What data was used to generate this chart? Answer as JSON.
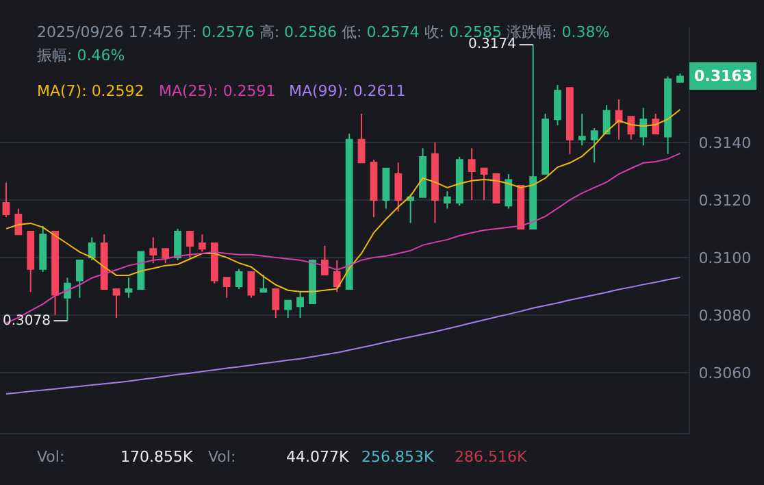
{
  "chart_data": {
    "type": "candlestick",
    "categories": [
      null,
      null,
      null,
      null,
      null,
      null,
      null,
      null,
      null,
      null,
      null,
      null,
      null,
      null,
      null,
      null,
      null,
      null,
      null,
      null,
      null,
      null,
      null,
      null,
      null,
      null,
      null,
      null,
      null,
      null,
      null,
      null,
      null,
      null,
      null,
      null,
      null,
      null,
      null,
      null,
      null,
      null,
      null,
      null,
      null,
      null,
      null,
      null,
      null,
      null,
      null,
      null,
      null,
      null,
      null,
      null
    ],
    "ohlc": [
      [
        0.3119,
        0.3126,
        0.3114,
        0.3115
      ],
      [
        0.3115,
        0.3117,
        0.3108,
        0.3108
      ],
      [
        0.3109,
        0.3109,
        0.3088,
        0.3096
      ],
      [
        0.3096,
        0.3111,
        0.3095,
        0.3108
      ],
      [
        0.3109,
        0.3109,
        0.308,
        0.3087
      ],
      [
        0.3086,
        0.3093,
        0.3078,
        0.3091
      ],
      [
        0.3092,
        0.3099,
        0.3086,
        0.3099
      ],
      [
        0.31,
        0.3107,
        0.3099,
        0.3105
      ],
      [
        0.3105,
        0.3108,
        0.3089,
        0.3089
      ],
      [
        0.3089,
        0.3089,
        0.3079,
        0.3087
      ],
      [
        0.3088,
        0.3093,
        0.3086,
        0.3089
      ],
      [
        0.3089,
        0.3102,
        0.3089,
        0.3102
      ],
      [
        0.3103,
        0.3107,
        0.3098,
        0.3101
      ],
      [
        0.3103,
        0.3103,
        0.3098,
        0.31
      ],
      [
        0.31,
        0.311,
        0.3099,
        0.3109
      ],
      [
        0.3109,
        0.3109,
        0.31,
        0.3104
      ],
      [
        0.3105,
        0.3108,
        0.3102,
        0.3103
      ],
      [
        0.3105,
        0.3105,
        0.3091,
        0.3092
      ],
      [
        0.3093,
        0.3093,
        0.3086,
        0.309
      ],
      [
        0.309,
        0.3096,
        0.3089,
        0.3095
      ],
      [
        0.3095,
        0.3095,
        0.3086,
        0.3087
      ],
      [
        0.3088,
        0.3094,
        0.3088,
        0.3089
      ],
      [
        0.3089,
        0.3089,
        0.3079,
        0.3082
      ],
      [
        0.3082,
        0.3085,
        0.3079,
        0.3085
      ],
      [
        0.3083,
        0.3088,
        0.3079,
        0.3086
      ],
      [
        0.3084,
        0.3099,
        0.3084,
        0.3099
      ],
      [
        0.3099,
        0.3104,
        0.3094,
        0.3094
      ],
      [
        0.3095,
        0.3099,
        0.3088,
        0.309
      ],
      [
        0.3089,
        0.3143,
        0.3089,
        0.3141
      ],
      [
        0.3141,
        0.315,
        0.3133,
        0.3133
      ],
      [
        0.3133,
        0.3134,
        0.3114,
        0.312
      ],
      [
        0.312,
        0.3131,
        0.3117,
        0.3131
      ],
      [
        0.3129,
        0.3133,
        0.3116,
        0.312
      ],
      [
        0.312,
        0.3122,
        0.3112,
        0.3121
      ],
      [
        0.3121,
        0.3138,
        0.3121,
        0.3135
      ],
      [
        0.3136,
        0.314,
        0.3112,
        0.312
      ],
      [
        0.3119,
        0.3123,
        0.3117,
        0.3121
      ],
      [
        0.3119,
        0.3135,
        0.3118,
        0.3134
      ],
      [
        0.3134,
        0.3138,
        0.312,
        0.313
      ],
      [
        0.3131,
        0.3131,
        0.312,
        0.3129
      ],
      [
        0.3129,
        0.3129,
        0.3119,
        0.3119
      ],
      [
        0.3118,
        0.3129,
        0.3117,
        0.3127
      ],
      [
        0.3125,
        0.3125,
        0.311,
        0.311
      ],
      [
        0.311,
        0.3174,
        0.311,
        0.3128
      ],
      [
        0.3129,
        0.315,
        0.3129,
        0.3148
      ],
      [
        0.3148,
        0.316,
        0.3146,
        0.3158
      ],
      [
        0.3159,
        0.3159,
        0.3136,
        0.3141
      ],
      [
        0.3141,
        0.315,
        0.3139,
        0.3142
      ],
      [
        0.3141,
        0.3145,
        0.3133,
        0.3144
      ],
      [
        0.3143,
        0.3153,
        0.3143,
        0.3151
      ],
      [
        0.3151,
        0.3155,
        0.3141,
        0.3147
      ],
      [
        0.3149,
        0.3149,
        0.3141,
        0.3143
      ],
      [
        0.3142,
        0.3152,
        0.3139,
        0.3148
      ],
      [
        0.3148,
        0.315,
        0.3143,
        0.3143
      ],
      [
        0.3142,
        0.3163,
        0.3136,
        0.3162
      ],
      [
        0.3161,
        0.3164,
        0.3161,
        0.3163
      ]
    ],
    "series": [
      {
        "name": "MA(7):",
        "type": "line",
        "color": "#f0b90b",
        "values": [
          0.311,
          0.31114,
          0.31119,
          0.31105,
          0.31076,
          0.31048,
          0.31019,
          0.31,
          0.30967,
          0.30938,
          0.30938,
          0.30953,
          0.30962,
          0.30972,
          0.30976,
          0.30995,
          0.31014,
          0.31014,
          0.31,
          0.30981,
          0.30967,
          0.30934,
          0.30905,
          0.30886,
          0.30881,
          0.30881,
          0.30886,
          0.30891,
          0.30962,
          0.31014,
          0.31086,
          0.31133,
          0.31176,
          0.31214,
          0.31276,
          0.31262,
          0.31243,
          0.31257,
          0.31267,
          0.31271,
          0.31267,
          0.31257,
          0.31243,
          0.31252,
          0.31276,
          0.31314,
          0.31329,
          0.31352,
          0.3139,
          0.31438,
          0.31476,
          0.31462,
          0.31457,
          0.31462,
          0.31481,
          0.31514
        ]
      },
      {
        "name": "MA(25):",
        "type": "line",
        "color": "#d63fa8",
        "values": [
          0.30772,
          0.30791,
          0.30815,
          0.30838,
          0.30867,
          0.30886,
          0.30905,
          0.30929,
          0.30943,
          0.30957,
          0.30972,
          0.30981,
          0.30991,
          0.30995,
          0.31005,
          0.3101,
          0.31014,
          0.31019,
          0.31014,
          0.3101,
          0.3101,
          0.31005,
          0.31,
          0.30995,
          0.30991,
          0.30981,
          0.30972,
          0.30957,
          0.30972,
          0.30991,
          0.31,
          0.31005,
          0.31014,
          0.31024,
          0.31043,
          0.31053,
          0.31062,
          0.31076,
          0.31086,
          0.31095,
          0.311,
          0.31105,
          0.3111,
          0.31124,
          0.31143,
          0.31171,
          0.312,
          0.31224,
          0.31243,
          0.31262,
          0.3129,
          0.3131,
          0.31329,
          0.31333,
          0.31343,
          0.31362
        ]
      },
      {
        "name": "MA(99):",
        "type": "line",
        "color": "#a77ef0",
        "values": [
          0.30526,
          0.3053,
          0.30535,
          0.30539,
          0.30543,
          0.30548,
          0.30552,
          0.30557,
          0.30561,
          0.30565,
          0.3057,
          0.30576,
          0.30581,
          0.30587,
          0.30593,
          0.30598,
          0.30604,
          0.30609,
          0.30615,
          0.3062,
          0.30626,
          0.30632,
          0.30637,
          0.30643,
          0.30648,
          0.30655,
          0.30662,
          0.30669,
          0.30678,
          0.30687,
          0.30696,
          0.30706,
          0.30715,
          0.30724,
          0.30733,
          0.30742,
          0.30752,
          0.30762,
          0.30773,
          0.30783,
          0.30793,
          0.30803,
          0.30813,
          0.30824,
          0.30833,
          0.30842,
          0.30852,
          0.30861,
          0.3087,
          0.30879,
          0.30889,
          0.30897,
          0.30906,
          0.30914,
          0.30923,
          0.30931
        ]
      }
    ],
    "ylim": [
      0.3039,
      0.318
    ],
    "yticks": [
      {
        "value": 0.306,
        "label": "0.3060"
      },
      {
        "value": 0.308,
        "label": "0.3080"
      },
      {
        "value": 0.31,
        "label": "0.3100"
      },
      {
        "value": 0.312,
        "label": "0.3120"
      },
      {
        "value": 0.314,
        "label": "0.3140"
      }
    ],
    "grid": "y",
    "tick_labels": "y",
    "marker": "none",
    "line_style": "solid",
    "annotations": [
      "2025/09/26 17:45 开: 0.2576 高: 0.2586 低: 0.2574 收: 0.2585 涨跌幅: 0.38%",
      "振幅: 0.46%",
      "0.2592",
      "0.2591",
      "0.2611",
      "Vol:",
      "170.855K",
      "Vol:",
      "44.077K",
      "256.853K",
      "286.516K",
      "0.3174",
      "0.3078",
      "0.3163"
    ]
  }
}
